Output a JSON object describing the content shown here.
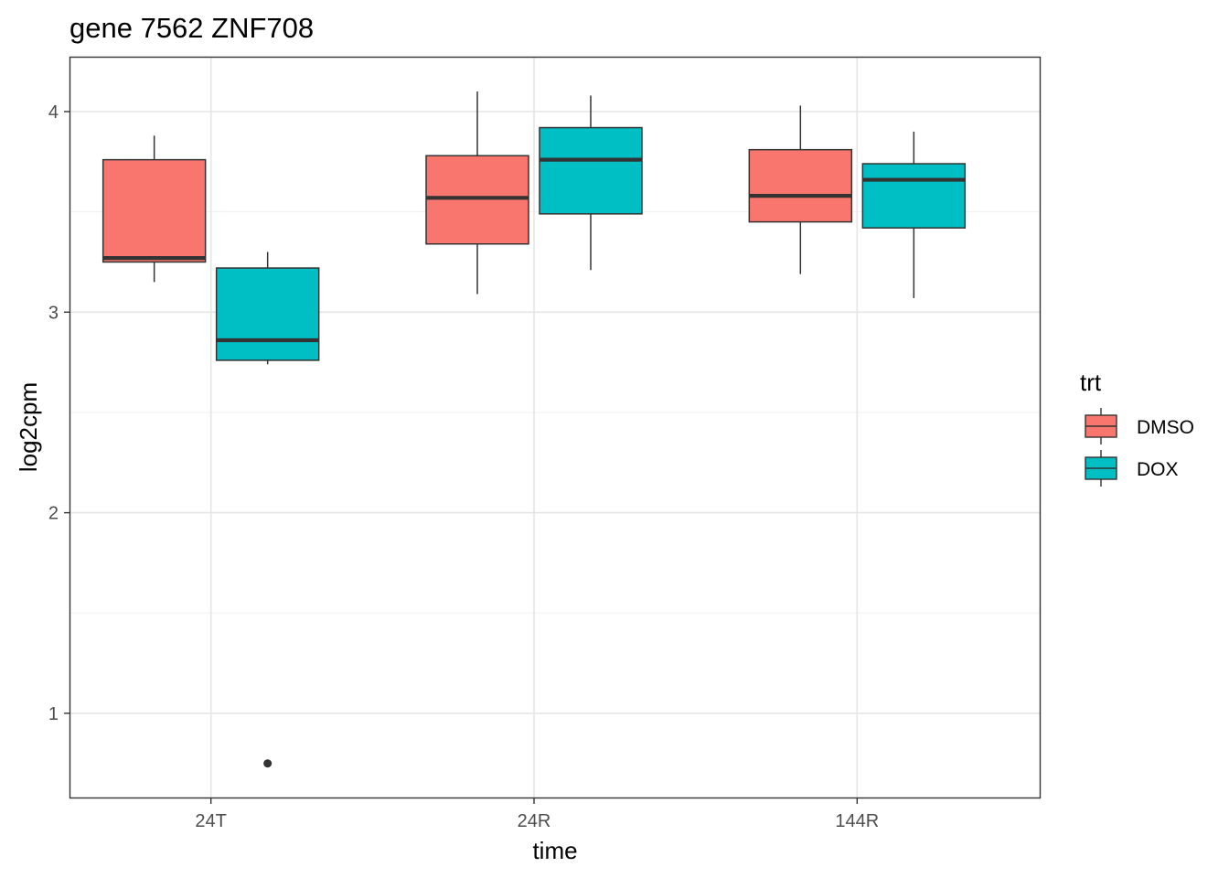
{
  "chart_data": {
    "type": "box",
    "title": "gene 7562 ZNF708",
    "xlabel": "time",
    "ylabel": "log2cpm",
    "categories": [
      "24T",
      "24R",
      "144R"
    ],
    "ylim": [
      0.58,
      4.26
    ],
    "yticks": [
      1,
      2,
      3,
      4
    ],
    "grid": true,
    "legend": {
      "title": "trt",
      "position": "right",
      "entries": [
        "DMSO",
        "DOX"
      ]
    },
    "colors": {
      "DMSO": "#F8766D",
      "DOX": "#00BFC4"
    },
    "series": [
      {
        "name": "DMSO",
        "boxes": [
          {
            "category": "24T",
            "whisker_low": 3.15,
            "q1": 3.25,
            "median": 3.27,
            "q3": 3.76,
            "whisker_high": 3.88,
            "outliers": []
          },
          {
            "category": "24R",
            "whisker_low": 3.09,
            "q1": 3.34,
            "median": 3.57,
            "q3": 3.78,
            "whisker_high": 4.1,
            "outliers": []
          },
          {
            "category": "144R",
            "whisker_low": 3.19,
            "q1": 3.45,
            "median": 3.58,
            "q3": 3.81,
            "whisker_high": 4.03,
            "outliers": []
          }
        ]
      },
      {
        "name": "DOX",
        "boxes": [
          {
            "category": "24T",
            "whisker_low": 2.74,
            "q1": 2.76,
            "median": 2.86,
            "q3": 3.22,
            "whisker_high": 3.3,
            "outliers": [
              0.75
            ]
          },
          {
            "category": "24R",
            "whisker_low": 3.21,
            "q1": 3.49,
            "median": 3.76,
            "q3": 3.92,
            "whisker_high": 4.08,
            "outliers": []
          },
          {
            "category": "144R",
            "whisker_low": 3.07,
            "q1": 3.42,
            "median": 3.66,
            "q3": 3.74,
            "whisker_high": 3.9,
            "outliers": []
          }
        ]
      }
    ]
  }
}
